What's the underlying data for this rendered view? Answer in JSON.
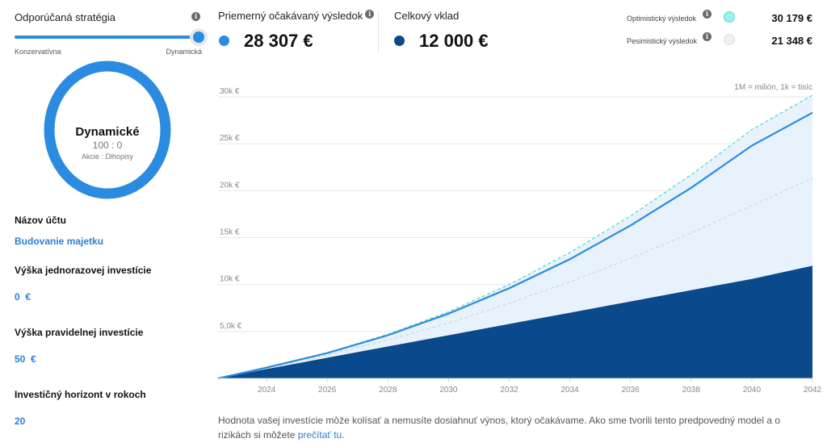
{
  "strategy": {
    "title": "Odporúčaná stratégia",
    "min_label": "Konzervatívna",
    "max_label": "Dynamická",
    "level": 1.0
  },
  "portfolio": {
    "name": "Dynamické",
    "ratio": "100 : 0",
    "legend": "Akcie : Dlhopisy",
    "ring_color": "#2b8be0"
  },
  "fields": {
    "account_name_label": "Názov účtu",
    "account_name_value": "Budovanie majetku",
    "lump_sum_label": "Výška jednorazovej investície",
    "lump_sum_value": "0  €",
    "regular_label": "Výška pravidelnej investície",
    "regular_value": "50  €",
    "horizon_label": "Investičný horizont v rokoch",
    "horizon_value": "20"
  },
  "summary": {
    "avg_label": "Priemerný očakávaný výsledok",
    "avg_value": "28 307 €",
    "avg_color": "#2b8be0",
    "total_label": "Celkový vklad",
    "total_value": "12 000 €",
    "total_color": "#0a4a8c",
    "optimistic_label": "Optimistický výsledok",
    "optimistic_value": "30 179 €",
    "optimistic_color": "#9ff0ea",
    "pessimistic_label": "Pesimistický výsledok",
    "pessimistic_value": "21 348 €",
    "pessimistic_color": "#eef0f3"
  },
  "chart_data": {
    "type": "area",
    "note": "1M = milión, 1k = tisíc",
    "x": [
      2022.4,
      2024,
      2026,
      2028,
      2030,
      2032,
      2034,
      2036,
      2038,
      2040,
      2042
    ],
    "xticks": [
      "2024",
      "2026",
      "2028",
      "2030",
      "2032",
      "2034",
      "2036",
      "2038",
      "2040",
      "2042"
    ],
    "yticks": [
      "5,0k €",
      "10k €",
      "15k €",
      "20k €",
      "25k €",
      "30k €"
    ],
    "ytick_values": [
      5000,
      10000,
      15000,
      20000,
      25000,
      30000
    ],
    "ylim": [
      0,
      30000
    ],
    "xlim": [
      2022.4,
      2042
    ],
    "grid": true,
    "series": [
      {
        "name": "Celkový vklad",
        "kind": "area",
        "color": "#0a4a8c",
        "values": [
          0,
          1000,
          2200,
          3400,
          4600,
          5800,
          7000,
          8200,
          9400,
          10600,
          12000
        ]
      },
      {
        "name": "Priemerný očakávaný výsledok",
        "kind": "line",
        "color": "#2b8be0",
        "values": [
          0,
          1150,
          2700,
          4600,
          6900,
          9600,
          12700,
          16300,
          20300,
          24800,
          28307
        ]
      },
      {
        "name": "Optimistický výsledok",
        "kind": "dashed",
        "color": "#4fd6c8",
        "values": [
          0,
          1150,
          2750,
          4700,
          7100,
          10000,
          13400,
          17300,
          21700,
          26500,
          30179
        ]
      },
      {
        "name": "Pesimistický výsledok",
        "kind": "dashed",
        "color": "#d2d6dc",
        "values": [
          0,
          1100,
          2500,
          4100,
          5900,
          8000,
          10300,
          12800,
          15500,
          18400,
          21348
        ]
      }
    ]
  },
  "disclaimer": {
    "text": "Hodnota vašej investície môže kolísať a nemusíte dosiahnuť výnos, ktorý očakávame. Ako sme tvorili tento predpovedný model a o rizikách si môžete ",
    "link": "prečítať tu",
    "end": "."
  }
}
